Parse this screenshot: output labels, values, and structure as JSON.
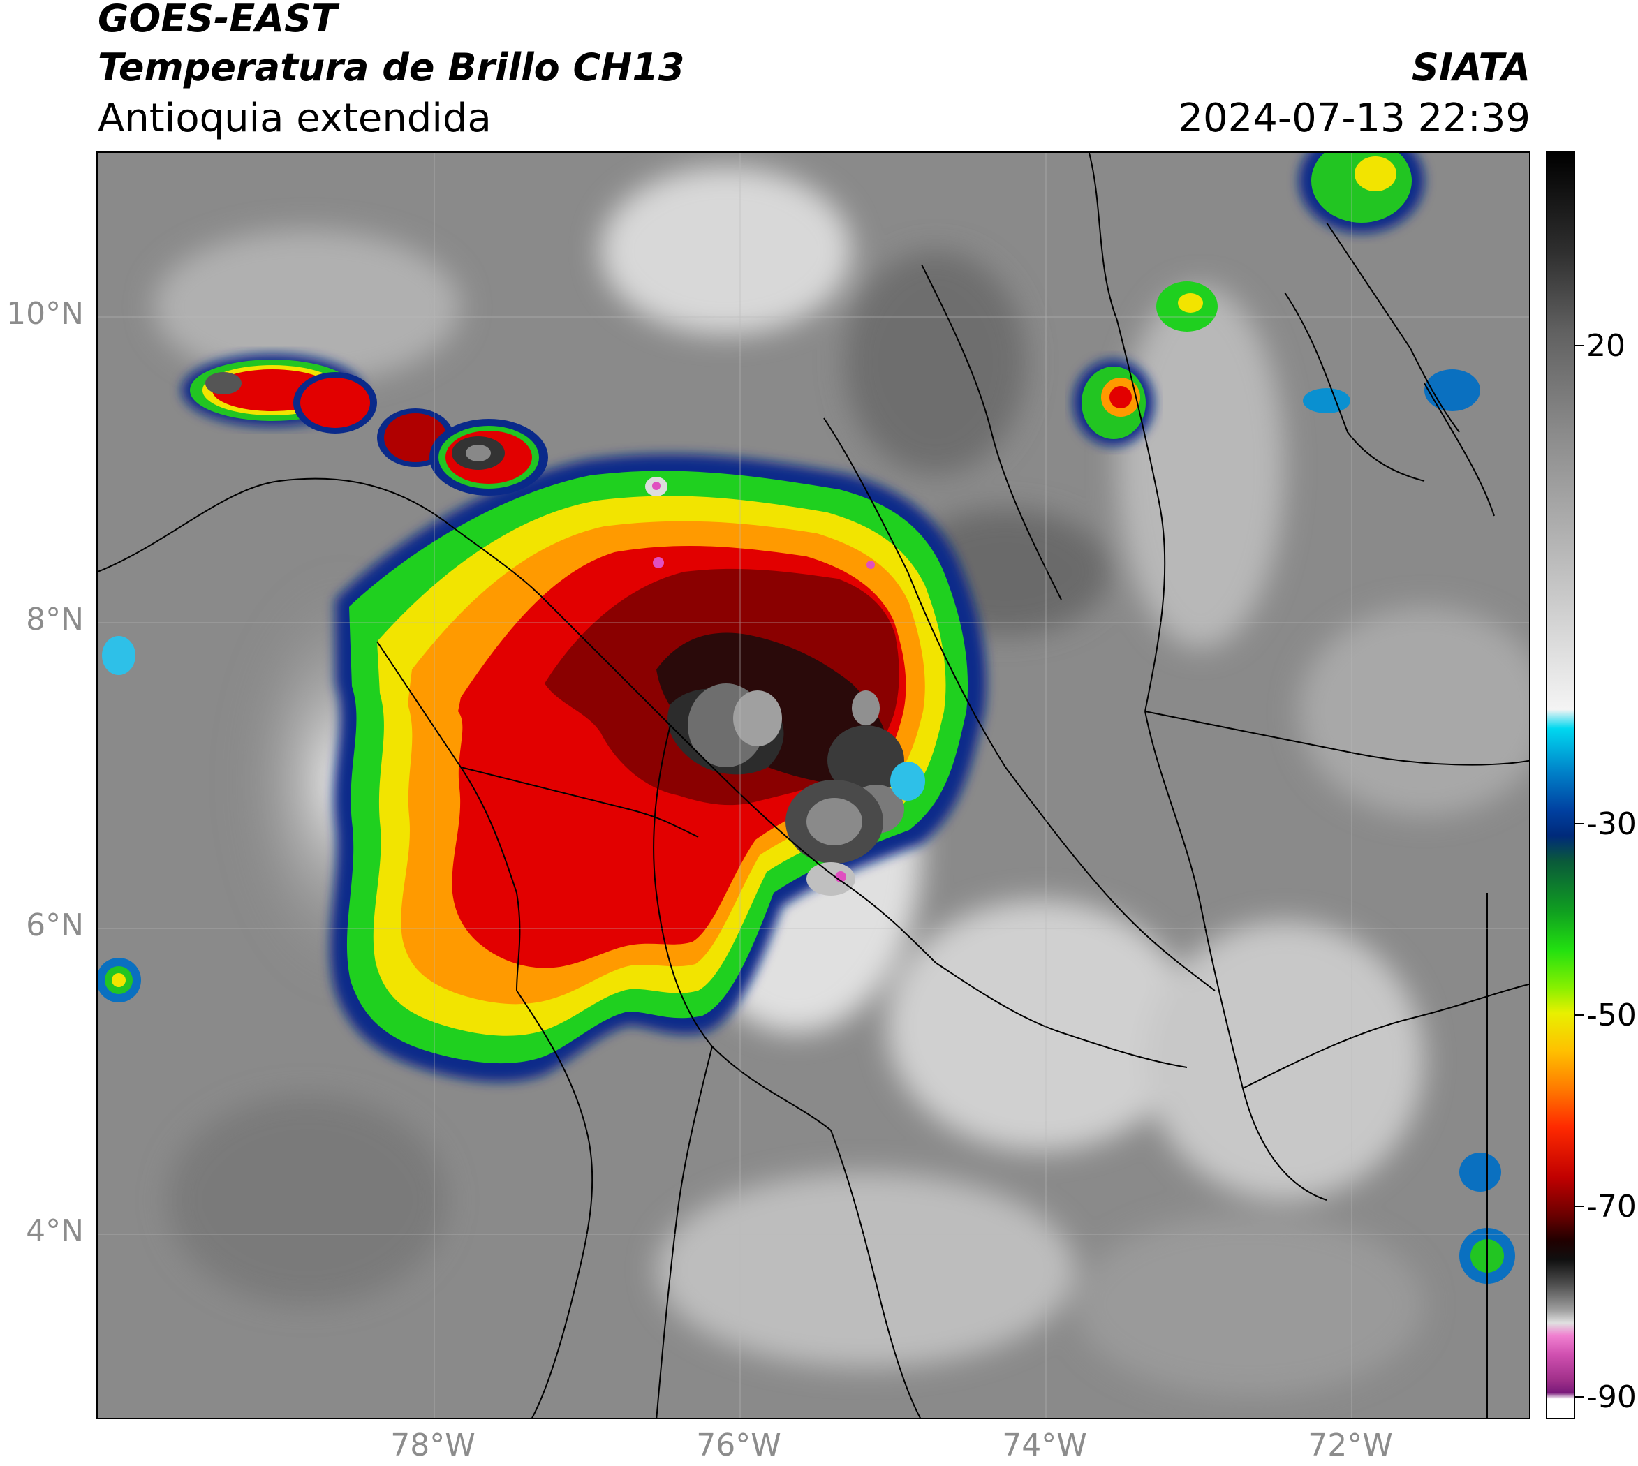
{
  "header": {
    "satellite": "GOES-EAST",
    "product": "Temperatura de Brillo CH13",
    "region": "Antioquia extendida",
    "organization": "SIATA",
    "timestamp": "2024-07-13 22:39"
  },
  "map": {
    "lat_labels": [
      "10°N",
      "8°N",
      "6°N",
      "4°N"
    ],
    "lon_labels": [
      "78°W",
      "76°W",
      "74°W",
      "72°W"
    ],
    "gridlines": true,
    "colors": {
      "clear_sky": "#8a8a8a",
      "warm_cloud": "#e8e8e8",
      "cold_edge": "#0a2a8a",
      "green": "#22c522",
      "yellow": "#f0e000",
      "orange": "#ff8a00",
      "red": "#dd0000",
      "dark_red": "#6a0000",
      "black": "#111111",
      "magenta": "#e050c0",
      "borders": "#000000"
    }
  },
  "colorbar": {
    "ticks": [
      "20",
      "-30",
      "-50",
      "-70",
      "-90"
    ],
    "unit": "",
    "min": -90,
    "max": 40
  }
}
